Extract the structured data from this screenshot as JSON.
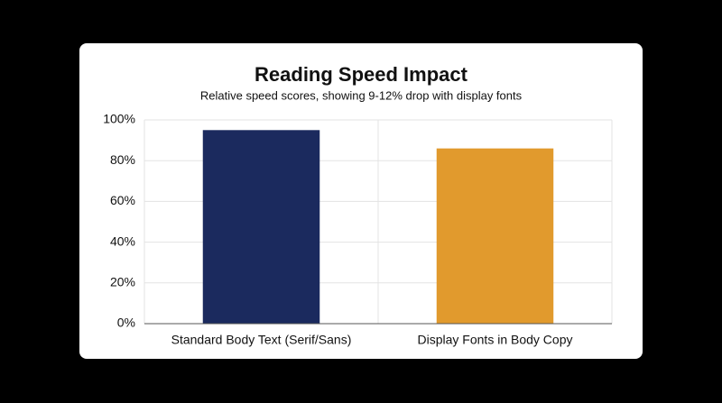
{
  "chart_data": {
    "type": "bar",
    "title": "Reading Speed Impact",
    "subtitle": "Relative speed scores, showing 9-12% drop with display fonts",
    "categories": [
      "Standard Body Text (Serif/Sans)",
      "Display Fonts in Body Copy"
    ],
    "values": [
      95,
      86
    ],
    "colors": [
      "#1b2a5e",
      "#e19a2d"
    ],
    "ylim": [
      0,
      100
    ],
    "yticks": [
      {
        "value": 0,
        "label": "0%"
      },
      {
        "value": 20,
        "label": "20%"
      },
      {
        "value": 40,
        "label": "40%"
      },
      {
        "value": 60,
        "label": "60%"
      },
      {
        "value": 80,
        "label": "80%"
      },
      {
        "value": 100,
        "label": "100%"
      }
    ],
    "grid": true
  }
}
